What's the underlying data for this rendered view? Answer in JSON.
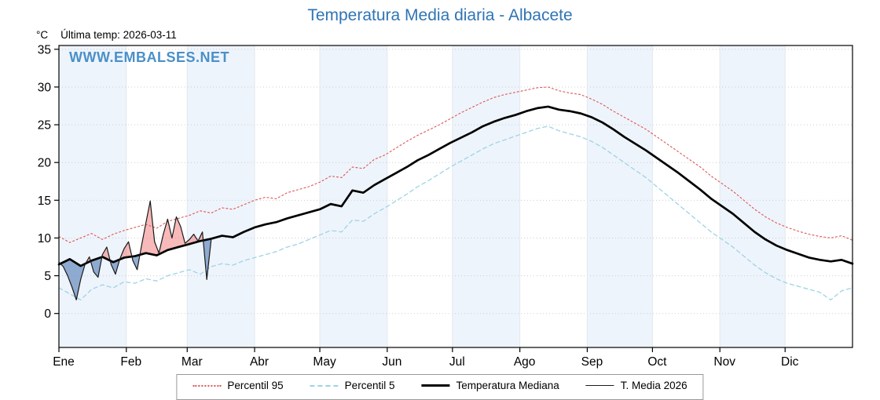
{
  "chart_data": {
    "type": "line",
    "title": "Temperatura Media diaria - Albacete",
    "annotation": "Última temp: 2026-03-11",
    "watermark": "WWW.EMBALSES.NET",
    "xlabel": "",
    "ylabel": "°C",
    "ylim": [
      -4.5,
      35.5
    ],
    "yticks": [
      0,
      5,
      10,
      15,
      20,
      25,
      30,
      35
    ],
    "x_unit": "day_of_year",
    "xlim": [
      0,
      365
    ],
    "months": [
      "Ene",
      "Feb",
      "Mar",
      "Abr",
      "May",
      "Jun",
      "Jul",
      "Ago",
      "Sep",
      "Oct",
      "Nov",
      "Dic"
    ],
    "month_start_days": [
      0,
      31,
      59,
      90,
      120,
      151,
      181,
      212,
      243,
      273,
      304,
      334
    ],
    "grid": true,
    "legend_position": "bottom",
    "legend": [
      {
        "label": "Percentil 95"
      },
      {
        "label": "Percentil 5"
      },
      {
        "label": "Temperatura Mediana"
      },
      {
        "label": "T. Media 2026"
      }
    ],
    "colors": {
      "title": "#2f74b5",
      "watermark": "#4a90c8",
      "p95": "#dd5555",
      "p5": "#9ed3e6",
      "median": "#000000",
      "actual": "#1a1a1a",
      "above_fill": "rgba(240,128,128,0.55)",
      "below_fill": "rgba(90,130,185,0.65)",
      "band": "#eef4fb",
      "grid": "#c9cdd2",
      "month_grid": "#e2e8ee"
    },
    "x_climatology": [
      0,
      5,
      10,
      15,
      20,
      25,
      30,
      35,
      40,
      45,
      50,
      55,
      60,
      65,
      70,
      75,
      80,
      85,
      90,
      95,
      100,
      105,
      110,
      115,
      120,
      125,
      130,
      135,
      140,
      145,
      150,
      155,
      160,
      165,
      170,
      175,
      180,
      185,
      190,
      195,
      200,
      205,
      210,
      215,
      220,
      225,
      230,
      235,
      240,
      245,
      250,
      255,
      260,
      265,
      270,
      275,
      280,
      285,
      290,
      295,
      300,
      305,
      310,
      315,
      320,
      325,
      330,
      335,
      340,
      345,
      350,
      355,
      360,
      365
    ],
    "series": [
      {
        "name": "Percentil 95",
        "x_ref": "x_climatology",
        "values": [
          10.2,
          9.4,
          10.0,
          10.6,
          9.8,
          10.5,
          11.0,
          11.4,
          11.8,
          11.3,
          12.2,
          12.6,
          13.0,
          13.6,
          13.3,
          14.0,
          13.8,
          14.4,
          15.0,
          15.4,
          15.2,
          16.0,
          16.4,
          16.8,
          17.4,
          18.2,
          18.0,
          19.4,
          19.2,
          20.4,
          21.0,
          21.9,
          22.8,
          23.6,
          24.3,
          25.0,
          25.8,
          26.6,
          27.3,
          28.0,
          28.6,
          29.0,
          29.3,
          29.6,
          29.9,
          30.0,
          29.5,
          29.2,
          29.0,
          28.4,
          27.7,
          26.8,
          26.0,
          25.2,
          24.4,
          23.4,
          22.4,
          21.4,
          20.4,
          19.4,
          18.2,
          17.2,
          16.2,
          15.0,
          13.8,
          12.8,
          12.0,
          11.4,
          10.9,
          10.5,
          10.2,
          10.0,
          10.3,
          9.7
        ]
      },
      {
        "name": "Percentil 5",
        "x_ref": "x_climatology",
        "values": [
          3.4,
          2.6,
          1.8,
          3.2,
          3.8,
          3.4,
          4.2,
          4.0,
          4.6,
          4.3,
          5.0,
          5.4,
          5.8,
          5.2,
          6.2,
          6.6,
          6.4,
          7.0,
          7.4,
          7.8,
          8.2,
          8.8,
          9.2,
          9.8,
          10.4,
          11.0,
          10.8,
          12.4,
          12.2,
          13.2,
          14.0,
          14.9,
          15.8,
          16.8,
          17.6,
          18.5,
          19.4,
          20.2,
          21.0,
          21.8,
          22.5,
          23.0,
          23.5,
          24.0,
          24.5,
          24.8,
          24.2,
          23.8,
          23.4,
          22.8,
          22.0,
          21.0,
          20.0,
          19.0,
          18.0,
          16.8,
          15.6,
          14.4,
          13.2,
          12.0,
          10.8,
          9.8,
          8.8,
          7.6,
          6.4,
          5.4,
          4.6,
          4.0,
          3.6,
          3.2,
          2.8,
          1.8,
          3.0,
          3.4
        ]
      },
      {
        "name": "Temperatura Mediana",
        "x_ref": "x_climatology",
        "values": [
          6.5,
          7.2,
          6.3,
          7.0,
          7.5,
          6.8,
          7.4,
          7.6,
          8.0,
          7.7,
          8.4,
          8.8,
          9.2,
          9.6,
          9.9,
          10.3,
          10.1,
          10.8,
          11.4,
          11.8,
          12.1,
          12.6,
          13.0,
          13.4,
          13.8,
          14.5,
          14.2,
          16.3,
          16.0,
          17.0,
          17.8,
          18.6,
          19.4,
          20.3,
          21.0,
          21.8,
          22.6,
          23.3,
          24.0,
          24.8,
          25.4,
          25.9,
          26.3,
          26.8,
          27.2,
          27.4,
          27.0,
          26.8,
          26.5,
          26.0,
          25.3,
          24.4,
          23.4,
          22.5,
          21.6,
          20.6,
          19.6,
          18.6,
          17.5,
          16.4,
          15.2,
          14.2,
          13.2,
          12.0,
          10.8,
          9.8,
          9.0,
          8.4,
          7.9,
          7.4,
          7.1,
          6.9,
          7.1,
          6.6
        ]
      },
      {
        "name": "T. Media 2026",
        "x": [
          0,
          2,
          4,
          6,
          8,
          10,
          12,
          14,
          16,
          18,
          20,
          22,
          24,
          26,
          28,
          30,
          32,
          34,
          36,
          38,
          40,
          42,
          44,
          46,
          48,
          50,
          52,
          54,
          56,
          58,
          60,
          62,
          64,
          66,
          68,
          70
        ],
        "values": [
          6.8,
          6.2,
          5.0,
          3.5,
          1.8,
          4.5,
          6.5,
          7.5,
          5.5,
          4.8,
          7.8,
          8.8,
          6.5,
          5.2,
          7.2,
          8.6,
          9.5,
          7.0,
          5.8,
          9.0,
          12.0,
          14.9,
          9.5,
          8.0,
          10.5,
          12.5,
          10.0,
          12.8,
          11.5,
          9.3,
          9.8,
          10.5,
          9.6,
          10.8,
          4.5,
          9.7
        ]
      }
    ]
  }
}
